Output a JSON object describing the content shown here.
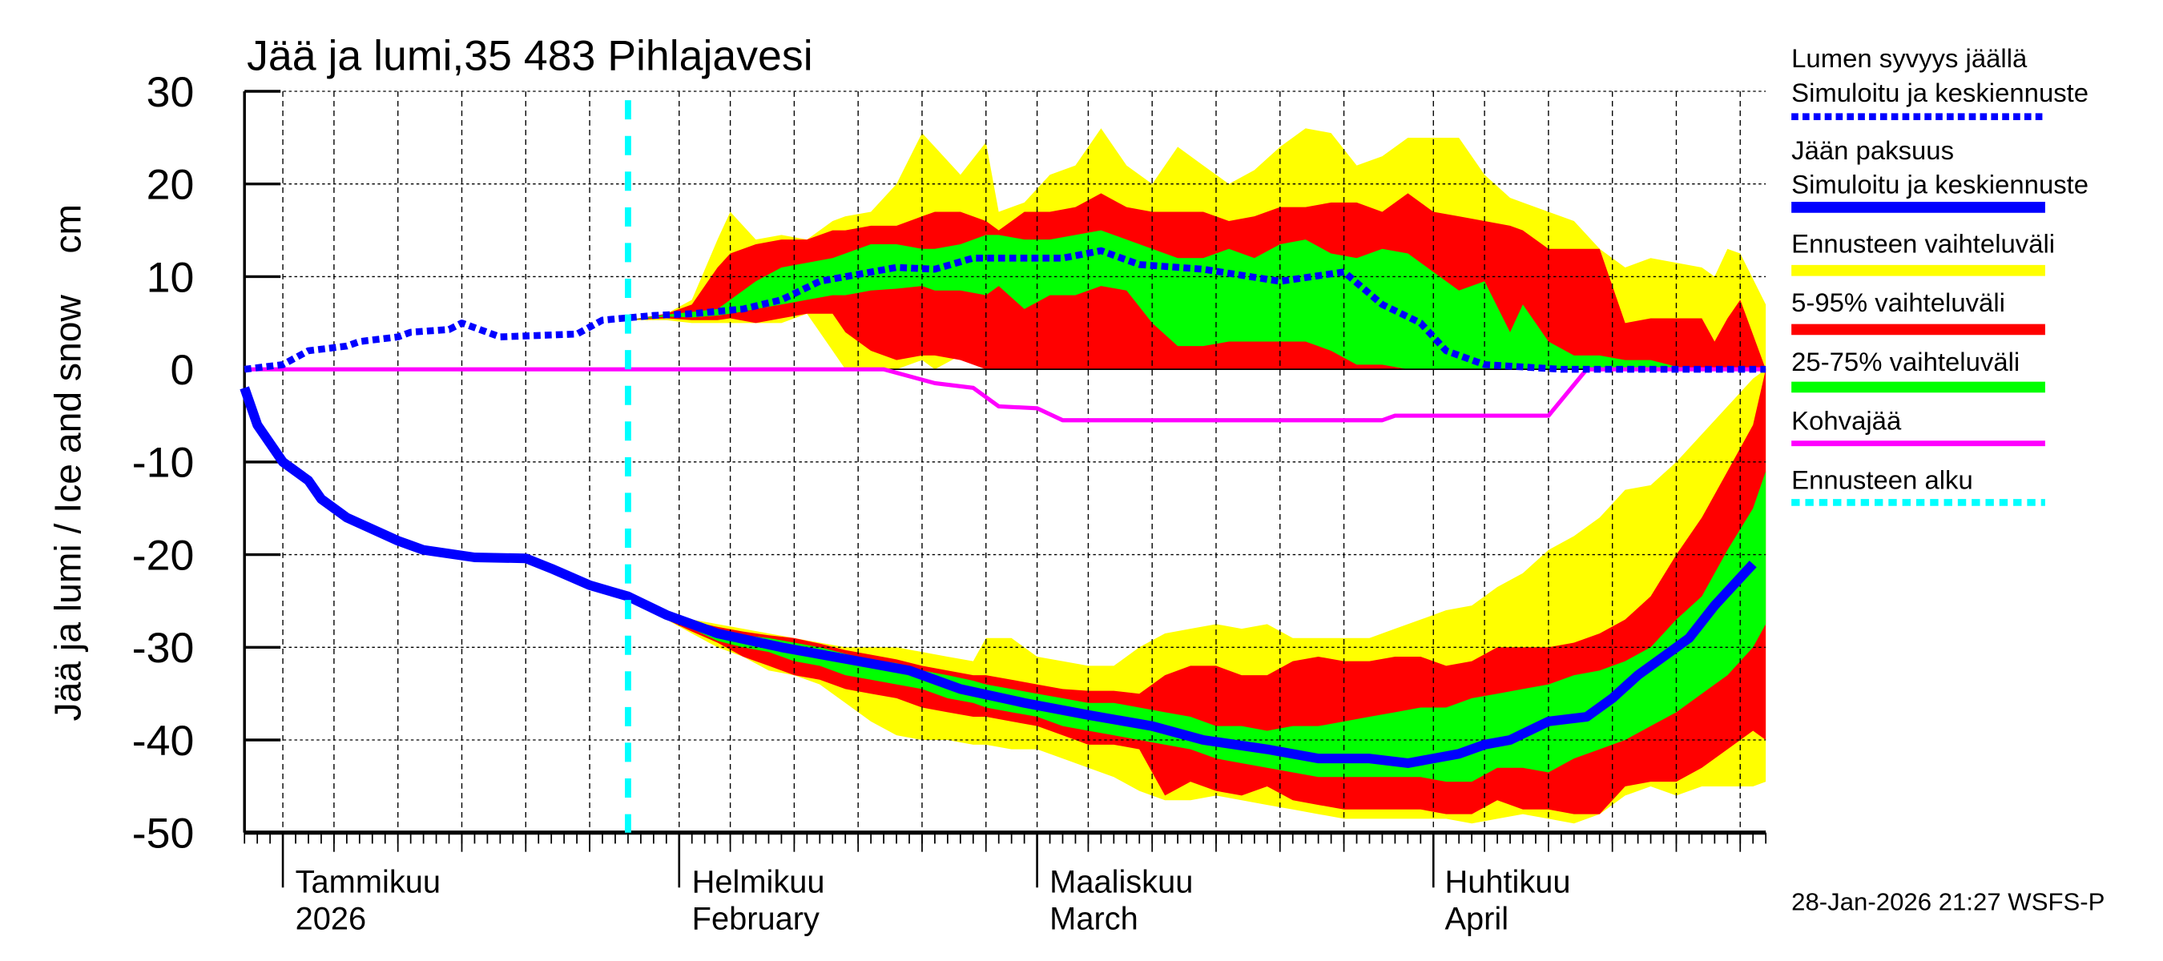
{
  "title": "Jää ja lumi,35 483 Pihlajavesi",
  "footer": "28-Jan-2026 21:27 WSFS-P",
  "legend": {
    "snow_title": "Lumen syvyys jäällä",
    "snow_sub": "Simuloitu ja keskiennuste",
    "ice_title": "Jään paksuus",
    "ice_sub": "Simuloitu ja keskiennuste",
    "range": "Ennusteen vaihteluväli",
    "p5_95": "5-95% vaihteluväli",
    "p25_75": "25-75% vaihteluväli",
    "slush": "Kohvajää",
    "forecast_start": "Ennusteen alku"
  },
  "months": [
    {
      "fi": "Tammikuu",
      "en": "2026"
    },
    {
      "fi": "Helmikuu",
      "en": "February"
    },
    {
      "fi": "Maaliskuu",
      "en": "March"
    },
    {
      "fi": "Huhtikuu",
      "en": "April"
    }
  ],
  "colors": {
    "snow_line": "#0000ff",
    "ice_line": "#0000ff",
    "range": "#ffff00",
    "p5_95": "#ff0000",
    "p25_75": "#00ff00",
    "slush": "#ff00ff",
    "forecast_start": "#00ffff"
  },
  "chart_data": {
    "type": "area",
    "title": "Jää ja lumi,35 483 Pihlajavesi",
    "ylabel": "Jää ja lumi / Ice and snow    cm",
    "xlabel": "",
    "xlim": [
      "2025-12-29",
      "2026-04-27"
    ],
    "ylim": [
      -50,
      30
    ],
    "yticks": [
      30,
      20,
      10,
      0,
      -10,
      -20,
      -30,
      -40,
      -50
    ],
    "grid": true,
    "legend_position": "right",
    "month_starts": [
      "2026-01-01",
      "2026-02-01",
      "2026-03-01",
      "2026-04-01"
    ],
    "grid_dates": [
      "2026-01-01",
      "2026-01-05",
      "2026-01-10",
      "2026-01-15",
      "2026-01-20",
      "2026-01-25",
      "2026-02-01",
      "2026-02-05",
      "2026-02-10",
      "2026-02-15",
      "2026-02-20",
      "2026-02-25",
      "2026-03-01",
      "2026-03-05",
      "2026-03-10",
      "2026-03-15",
      "2026-03-20",
      "2026-03-25",
      "2026-04-01",
      "2026-04-05",
      "2026-04-10",
      "2026-04-15",
      "2026-04-20",
      "2026-04-25"
    ],
    "forecast_start": "2026-01-28",
    "snow_depth": {
      "name": "Lumen syvyys jäällä",
      "x": [
        "2025-12-29",
        "2026-01-01",
        "2026-01-03",
        "2026-01-06",
        "2026-01-07",
        "2026-01-10",
        "2026-01-11",
        "2026-01-14",
        "2026-01-15",
        "2026-01-18",
        "2026-01-24",
        "2026-01-26",
        "2026-01-30",
        "2026-02-02",
        "2026-02-06",
        "2026-02-09",
        "2026-02-12",
        "2026-02-18",
        "2026-02-21",
        "2026-02-24",
        "2026-03-03",
        "2026-03-06",
        "2026-03-09",
        "2026-03-14",
        "2026-03-20",
        "2026-03-25",
        "2026-03-28",
        "2026-03-31",
        "2026-04-02",
        "2026-04-05",
        "2026-04-11",
        "2026-04-27"
      ],
      "y": [
        0,
        0.5,
        2,
        2.5,
        3,
        3.5,
        4,
        4.3,
        5,
        3.5,
        3.8,
        5.3,
        5.8,
        6,
        6.5,
        7.5,
        9.5,
        11,
        10.8,
        12,
        12,
        12.8,
        11.3,
        10.8,
        9.5,
        10.5,
        7,
        5,
        2,
        0.5,
        0,
        0
      ]
    },
    "ice_thickness": {
      "name": "Jään paksuus",
      "x": [
        "2025-12-29",
        "2025-12-30",
        "2026-01-01",
        "2026-01-03",
        "2026-01-04",
        "2026-01-06",
        "2026-01-10",
        "2026-01-12",
        "2026-01-16",
        "2026-01-20",
        "2026-01-22",
        "2026-01-25",
        "2026-01-28",
        "2026-01-31",
        "2026-02-04",
        "2026-02-09",
        "2026-02-15",
        "2026-02-19",
        "2026-02-23",
        "2026-02-28",
        "2026-03-05",
        "2026-03-10",
        "2026-03-14",
        "2026-03-19",
        "2026-03-23",
        "2026-03-27",
        "2026-03-30",
        "2026-04-03",
        "2026-04-05",
        "2026-04-07",
        "2026-04-10",
        "2026-04-13",
        "2026-04-15",
        "2026-04-17",
        "2026-04-19",
        "2026-04-21",
        "2026-04-23",
        "2026-04-26"
      ],
      "y": [
        -2,
        -6,
        -10,
        -12,
        -14,
        -16,
        -18.5,
        -19.5,
        -20.3,
        -20.4,
        -21.5,
        -23.3,
        -24.5,
        -26.5,
        -28.5,
        -30,
        -31.5,
        -32.5,
        -34.5,
        -36,
        -37.3,
        -38.5,
        -40,
        -41,
        -42,
        -42,
        -42.5,
        -41.5,
        -40.5,
        -40,
        -38,
        -37.5,
        -35.5,
        -33,
        -31,
        -29,
        -25.5,
        -21
      ]
    },
    "slush_ice": {
      "name": "Kohvajää",
      "x": [
        "2025-12-29",
        "2026-02-17",
        "2026-02-21",
        "2026-02-24",
        "2026-02-26",
        "2026-03-01",
        "2026-03-03",
        "2026-03-28",
        "2026-03-29",
        "2026-04-10",
        "2026-04-13",
        "2026-04-27"
      ],
      "y": [
        0,
        0,
        -1.5,
        -2,
        -4,
        -4.2,
        -5.5,
        -5.5,
        -5,
        -5,
        0,
        0
      ]
    },
    "snow_bands": {
      "x": [
        "2026-01-28",
        "2026-01-31",
        "2026-02-02",
        "2026-02-04",
        "2026-02-05",
        "2026-02-07",
        "2026-02-09",
        "2026-02-11",
        "2026-02-13",
        "2026-02-14",
        "2026-02-16",
        "2026-02-18",
        "2026-02-20",
        "2026-02-21",
        "2026-02-23",
        "2026-02-25",
        "2026-02-26",
        "2026-02-28",
        "2026-03-02",
        "2026-03-04",
        "2026-03-06",
        "2026-03-08",
        "2026-03-10",
        "2026-03-12",
        "2026-03-14",
        "2026-03-16",
        "2026-03-18",
        "2026-03-20",
        "2026-03-22",
        "2026-03-24",
        "2026-03-26",
        "2026-03-28",
        "2026-03-30",
        "2026-04-01",
        "2026-04-03",
        "2026-04-05",
        "2026-04-07",
        "2026-04-08",
        "2026-04-10",
        "2026-04-12",
        "2026-04-14",
        "2026-04-16",
        "2026-04-18",
        "2026-04-20",
        "2026-04-22",
        "2026-04-23",
        "2026-04-24",
        "2026-04-25",
        "2026-04-27"
      ],
      "range_min": [
        5.3,
        5.3,
        5,
        5,
        5,
        5,
        5,
        6,
        2,
        0,
        0,
        0,
        1,
        0,
        1.5,
        0,
        0.5,
        0,
        0,
        0,
        0,
        0,
        0,
        0,
        0,
        0,
        0,
        0,
        0,
        0,
        0,
        0,
        0,
        0,
        0,
        0,
        0,
        0,
        0,
        0,
        0,
        0,
        0,
        0,
        0,
        0,
        0,
        0,
        0
      ],
      "range_max": [
        5.3,
        6,
        7.5,
        14,
        17,
        14,
        14.5,
        14,
        16,
        16.5,
        17,
        20,
        25.5,
        24,
        21,
        24.5,
        17,
        18,
        21,
        22,
        26,
        22,
        20,
        24,
        22,
        20,
        21.5,
        24,
        26,
        25.5,
        22,
        23,
        25,
        25,
        25,
        21,
        18.5,
        18,
        17,
        16,
        13,
        11,
        12,
        11.5,
        11,
        10,
        13,
        12.5,
        7
      ],
      "p5": [
        5.3,
        5.5,
        5.3,
        5.3,
        5.5,
        5,
        5.5,
        6,
        6,
        4,
        2,
        1,
        1.5,
        1.5,
        1,
        0,
        0,
        0,
        0,
        0,
        0,
        0,
        0,
        0,
        0,
        0,
        0,
        0,
        0,
        0,
        0,
        0,
        0,
        0,
        0,
        0,
        0,
        0,
        0,
        0,
        0,
        0,
        0,
        0,
        0,
        0,
        0,
        0,
        0
      ],
      "p95": [
        5.3,
        6,
        7,
        11,
        12.5,
        13.5,
        14,
        14,
        15,
        15,
        15.5,
        15.5,
        16.5,
        17,
        17,
        16,
        15,
        17,
        17,
        17.5,
        19,
        17.5,
        17,
        17,
        17,
        16,
        16.5,
        17.5,
        17.5,
        18,
        18,
        17,
        19,
        17,
        16.5,
        16,
        15.5,
        15,
        13,
        13,
        13,
        5,
        5.5,
        5.5,
        5.5,
        3,
        5.5,
        7.5,
        0
      ],
      "p25": [
        5.3,
        5.7,
        5.6,
        5.8,
        6,
        6.5,
        7,
        7.5,
        8,
        8,
        8.5,
        8.7,
        9,
        8.5,
        8.5,
        8,
        9,
        6.5,
        8,
        8,
        9,
        8.5,
        5,
        2.5,
        2.5,
        3,
        3,
        3,
        3,
        2,
        0.5,
        0.5,
        0,
        0,
        0,
        0,
        0,
        0,
        0,
        0,
        0,
        0,
        0,
        0,
        0,
        0,
        0,
        0,
        0
      ],
      "p75": [
        5.3,
        5.9,
        6.2,
        6.5,
        7.5,
        9.5,
        11,
        11.5,
        12,
        12.5,
        13.5,
        13.5,
        13,
        13,
        13.5,
        14.5,
        14.5,
        14,
        14,
        14.5,
        15,
        14,
        13,
        12,
        12,
        13,
        12,
        13.5,
        14,
        12.5,
        12,
        13,
        12.5,
        10.5,
        8.5,
        9.5,
        4,
        7,
        3,
        1.5,
        1.5,
        1,
        1,
        0.3,
        0,
        0,
        0,
        0,
        0
      ]
    },
    "ice_bands": {
      "x": [
        "2026-01-28",
        "2026-01-31",
        "2026-02-02",
        "2026-02-04",
        "2026-02-06",
        "2026-02-08",
        "2026-02-10",
        "2026-02-12",
        "2026-02-14",
        "2026-02-16",
        "2026-02-18",
        "2026-02-20",
        "2026-02-22",
        "2026-02-24",
        "2026-02-25",
        "2026-02-27",
        "2026-03-01",
        "2026-03-03",
        "2026-03-05",
        "2026-03-07",
        "2026-03-09",
        "2026-03-11",
        "2026-03-13",
        "2026-03-15",
        "2026-03-17",
        "2026-03-19",
        "2026-03-21",
        "2026-03-23",
        "2026-03-25",
        "2026-03-27",
        "2026-03-29",
        "2026-03-31",
        "2026-04-02",
        "2026-04-04",
        "2026-04-06",
        "2026-04-08",
        "2026-04-10",
        "2026-04-12",
        "2026-04-14",
        "2026-04-16",
        "2026-04-18",
        "2026-04-20",
        "2026-04-22",
        "2026-04-24",
        "2026-04-26",
        "2026-04-27"
      ],
      "range_max": [
        -24.5,
        -26,
        -27,
        -27.5,
        -28,
        -28.5,
        -29,
        -29.5,
        -30,
        -30,
        -30,
        -30.5,
        -31,
        -31.5,
        -29,
        -29,
        -31,
        -31.5,
        -32,
        -32,
        -30,
        -28.5,
        -28,
        -27.5,
        -28,
        -27.5,
        -29,
        -29,
        -29,
        -29,
        -28,
        -27,
        -26,
        -25.5,
        -23.5,
        -22,
        -19.5,
        -18,
        -16,
        -13,
        -12.5,
        -10,
        -7,
        -4,
        -1,
        0
      ],
      "range_min": [
        -24.5,
        -27,
        -28.5,
        -30,
        -31,
        -32.5,
        -33,
        -34,
        -36,
        -38,
        -39.5,
        -40,
        -40,
        -40.5,
        -40.5,
        -41,
        -41,
        -42,
        -43,
        -44,
        -45.5,
        -46.5,
        -46.5,
        -46,
        -46.5,
        -47,
        -47.5,
        -48,
        -48.5,
        -48.5,
        -48.5,
        -48.5,
        -48.5,
        -49,
        -48.5,
        -48,
        -48.5,
        -49,
        -48,
        -46,
        -45,
        -46,
        -45,
        -45,
        -45,
        -44.5
      ],
      "p95": [
        -24.5,
        -26,
        -27.2,
        -27.8,
        -28.3,
        -28.7,
        -29,
        -29.6,
        -30.3,
        -30.8,
        -31.3,
        -32,
        -32.5,
        -33,
        -33,
        -33.5,
        -34,
        -34.5,
        -34.7,
        -34.7,
        -35,
        -33,
        -32,
        -32,
        -33,
        -33,
        -31.5,
        -31,
        -31.5,
        -31.5,
        -31,
        -31,
        -32,
        -31.5,
        -30,
        -30,
        -30,
        -29.5,
        -28.5,
        -27,
        -24.5,
        -20,
        -16,
        -11,
        -6,
        0
      ],
      "p5": [
        -24.5,
        -27,
        -28.3,
        -29.5,
        -31,
        -32,
        -33,
        -33.5,
        -34.5,
        -35,
        -35.5,
        -36.5,
        -37,
        -37.5,
        -37.5,
        -38,
        -38.5,
        -39.5,
        -40.5,
        -40.5,
        -41,
        -46,
        -44.5,
        -45.5,
        -46,
        -45,
        -46.5,
        -47,
        -47.5,
        -47.5,
        -47.5,
        -47.5,
        -48,
        -48,
        -46.5,
        -47.5,
        -47.5,
        -48,
        -48,
        -45,
        -44.5,
        -44.5,
        -43,
        -41,
        -39,
        -40
      ],
      "p75": [
        -24.5,
        -26.3,
        -27.5,
        -28.2,
        -28.7,
        -29,
        -29.5,
        -30,
        -30.7,
        -31.3,
        -31.7,
        -32.5,
        -33,
        -33.6,
        -34,
        -34.5,
        -35,
        -35.5,
        -36,
        -36,
        -36.5,
        -37,
        -37.5,
        -38.5,
        -38.5,
        -39,
        -38.5,
        -38.5,
        -38,
        -37.5,
        -37,
        -36.5,
        -36.5,
        -35.5,
        -35,
        -34.5,
        -34,
        -33,
        -32.5,
        -31.5,
        -30,
        -27,
        -24.5,
        -19.5,
        -15,
        -11
      ],
      "p25": [
        -24.5,
        -26.8,
        -28,
        -29.3,
        -30,
        -30.5,
        -31.5,
        -32,
        -33,
        -33.5,
        -34,
        -34.5,
        -35.5,
        -36,
        -36.5,
        -37,
        -37.5,
        -38.5,
        -39,
        -39.5,
        -40,
        -40.5,
        -41,
        -42,
        -42.5,
        -43,
        -43.5,
        -44,
        -44,
        -44,
        -44,
        -44,
        -44.5,
        -44.5,
        -43,
        -43,
        -43.5,
        -42,
        -41,
        -40,
        -38.5,
        -37,
        -35,
        -33,
        -30,
        -27.5
      ]
    }
  }
}
